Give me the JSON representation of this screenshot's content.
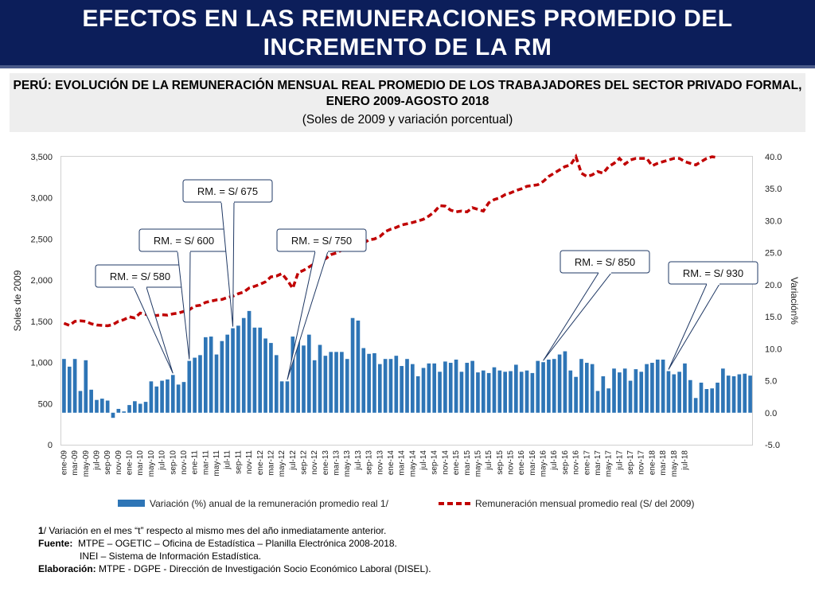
{
  "header": {
    "title": "EFECTOS EN LAS REMUNERACIONES PROMEDIO DEL INCREMENTO DE LA RM"
  },
  "subtitle": {
    "line1": "PERÚ: EVOLUCIÓN DE LA REMUNERACIÓN MENSUAL REAL PROMEDIO DE LOS TRABAJADORES DEL SECTOR PRIVADO FORMAL, ENERO 2009-AGOSTO 2018",
    "line2": "(Soles de 2009 y variación porcentual)"
  },
  "colors": {
    "header_bg": "#0c1e5a",
    "bar": "#2e75b6",
    "line": "#c00000",
    "callout_border": "#1f3864"
  },
  "chart_data": {
    "type": "bar+line",
    "title": "PERÚ: EVOLUCIÓN DE LA REMUNERACIÓN MENSUAL REAL PROMEDIO DE LOS TRABAJADORES DEL SECTOR PRIVADO FORMAL, ENERO 2009-AGOSTO 2018",
    "ylabel_left": "Soles de 2009",
    "ylabel_right": "Variación%",
    "ylim_left": [
      0,
      3500
    ],
    "ylim_right": [
      -5,
      40
    ],
    "yticks_left": [
      "0",
      "500",
      "1,000",
      "1,500",
      "2,000",
      "2,500",
      "3,000",
      "3,500"
    ],
    "yticks_right": [
      "-5.0",
      "0.0",
      "5.0",
      "10.0",
      "15.0",
      "20.0",
      "25.0",
      "30.0",
      "35.0",
      "40.0"
    ],
    "x_tick_labels": [
      "ene-09",
      "mar-09",
      "may-09",
      "jul-09",
      "sep-09",
      "nov-09",
      "ene-10",
      "mar-10",
      "may-10",
      "jul-10",
      "sep-10",
      "nov-10",
      "ene-11",
      "mar-11",
      "may-11",
      "jul-11",
      "sep-11",
      "nov-11",
      "ene-12",
      "mar-12",
      "may-12",
      "jul-12",
      "sep-12",
      "nov-12",
      "ene-13",
      "mar-13",
      "may-13",
      "jul-13",
      "sep-13",
      "nov-13",
      "ene-14",
      "mar-14",
      "may-14",
      "jul-14",
      "sep-14",
      "nov-14",
      "ene-15",
      "mar-15",
      "may-15",
      "jul-15",
      "sep-15",
      "nov-15",
      "ene-16",
      "mar-16",
      "may-16",
      "jul-16",
      "sep-16",
      "nov-16",
      "ene-17",
      "mar-17",
      "may-17",
      "jul-17",
      "sep-17",
      "nov-17",
      "ene-18",
      "mar-18",
      "may-18",
      "jul-18"
    ],
    "series": [
      {
        "name": "Variación (%) anual de la remuneración promedio real 1/",
        "type": "bar",
        "axis": "right",
        "values": [
          8.4,
          7.2,
          8.4,
          3.4,
          8.2,
          3.6,
          2.0,
          2.2,
          1.9,
          -0.8,
          0.6,
          0.2,
          1.2,
          1.8,
          1.4,
          1.7,
          4.9,
          4.1,
          5.0,
          5.2,
          5.9,
          4.4,
          4.8,
          8.1,
          8.6,
          9.0,
          11.8,
          11.9,
          9.1,
          11.2,
          12.2,
          13.2,
          13.6,
          14.8,
          15.9,
          13.3,
          13.3,
          11.6,
          10.9,
          9.0,
          4.9,
          4.9,
          11.9,
          11.2,
          10.5,
          12.2,
          8.2,
          10.6,
          8.9,
          9.5,
          9.5,
          9.5,
          8.4,
          14.8,
          14.4,
          10.1,
          9.2,
          9.3,
          7.6,
          8.4,
          8.4,
          8.9,
          7.3,
          8.4,
          7.6,
          5.7,
          7.0,
          7.7,
          7.7,
          6.4,
          8.0,
          7.8,
          8.3,
          6.4,
          7.8,
          8.1,
          6.3,
          6.6,
          6.2,
          7.1,
          6.6,
          6.4,
          6.5,
          7.5,
          6.4,
          6.6,
          6.2,
          8.1,
          7.9,
          8.3,
          8.4,
          9.1,
          9.6,
          6.6,
          5.6,
          8.4,
          7.8,
          7.6,
          3.4,
          5.7,
          3.8,
          6.9,
          6.3,
          6.9,
          5.0,
          6.8,
          6.4,
          7.6,
          7.8,
          8.3,
          8.3,
          6.5,
          6.0,
          6.4,
          7.7,
          5.1,
          2.3,
          4.7,
          3.7,
          3.8,
          4.7,
          6.9,
          5.8,
          5.7,
          6.0,
          6.1,
          5.8
        ]
      },
      {
        "name": "Remuneración mensual promedio real (S/ del 2009)",
        "type": "line",
        "axis": "left",
        "values": [
          1475,
          1450,
          1500,
          1505,
          1500,
          1470,
          1455,
          1450,
          1445,
          1460,
          1500,
          1520,
          1555,
          1540,
          1600,
          1585,
          1575,
          1570,
          1580,
          1575,
          1590,
          1600,
          1620,
          1640,
          1685,
          1695,
          1730,
          1745,
          1760,
          1765,
          1790,
          1805,
          1835,
          1855,
          1905,
          1925,
          1950,
          1980,
          2040,
          2050,
          2080,
          2000,
          1900,
          2090,
          2120,
          2160,
          2200,
          2240,
          2260,
          2310,
          2330,
          2365,
          2385,
          2390,
          2410,
          2450,
          2490,
          2500,
          2530,
          2590,
          2620,
          2640,
          2670,
          2685,
          2700,
          2720,
          2740,
          2780,
          2830,
          2905,
          2900,
          2850,
          2830,
          2840,
          2830,
          2880,
          2860,
          2840,
          2940,
          2980,
          3000,
          3040,
          3060,
          3090,
          3110,
          3140,
          3150,
          3160,
          3200,
          3260,
          3300,
          3340,
          3380,
          3400,
          3500,
          3300,
          3260,
          3280,
          3320,
          3300,
          3380,
          3420,
          3480,
          3410,
          3460,
          3480,
          3480,
          3480,
          3390,
          3420,
          3440,
          3460,
          3480,
          3480,
          3440,
          3420,
          3400,
          3440,
          3480,
          3500,
          3490
        ]
      }
    ],
    "annotations": [
      {
        "label": "RM. = S/ 580",
        "month": "sep-10"
      },
      {
        "label": "RM. = S/ 600",
        "month": "dic-10"
      },
      {
        "label": "RM. = S/ 675",
        "month": "ago-11"
      },
      {
        "label": "RM. = S/ 750",
        "month": "jun-12"
      },
      {
        "label": "RM. = S/ 850",
        "month": "may-16"
      },
      {
        "label": "RM. = S/ 930",
        "month": "abr-18"
      }
    ]
  },
  "footnotes": {
    "note1_mark": "1",
    "note1_text": "/ Variación en el mes “t” respecto al mismo mes del año inmediatamente anterior.",
    "source_label": "Fuente:",
    "source_line1": "MTPE – OGETIC – Oficina de Estadística – Planilla Electrónica 2008-2018.",
    "source_line2": "INEI – Sistema de Información Estadística.",
    "elab_label": "Elaboración:",
    "elab_text": "MTPE - DGPE - Dirección de Investigación Socio Económico Laboral (DISEL)."
  }
}
